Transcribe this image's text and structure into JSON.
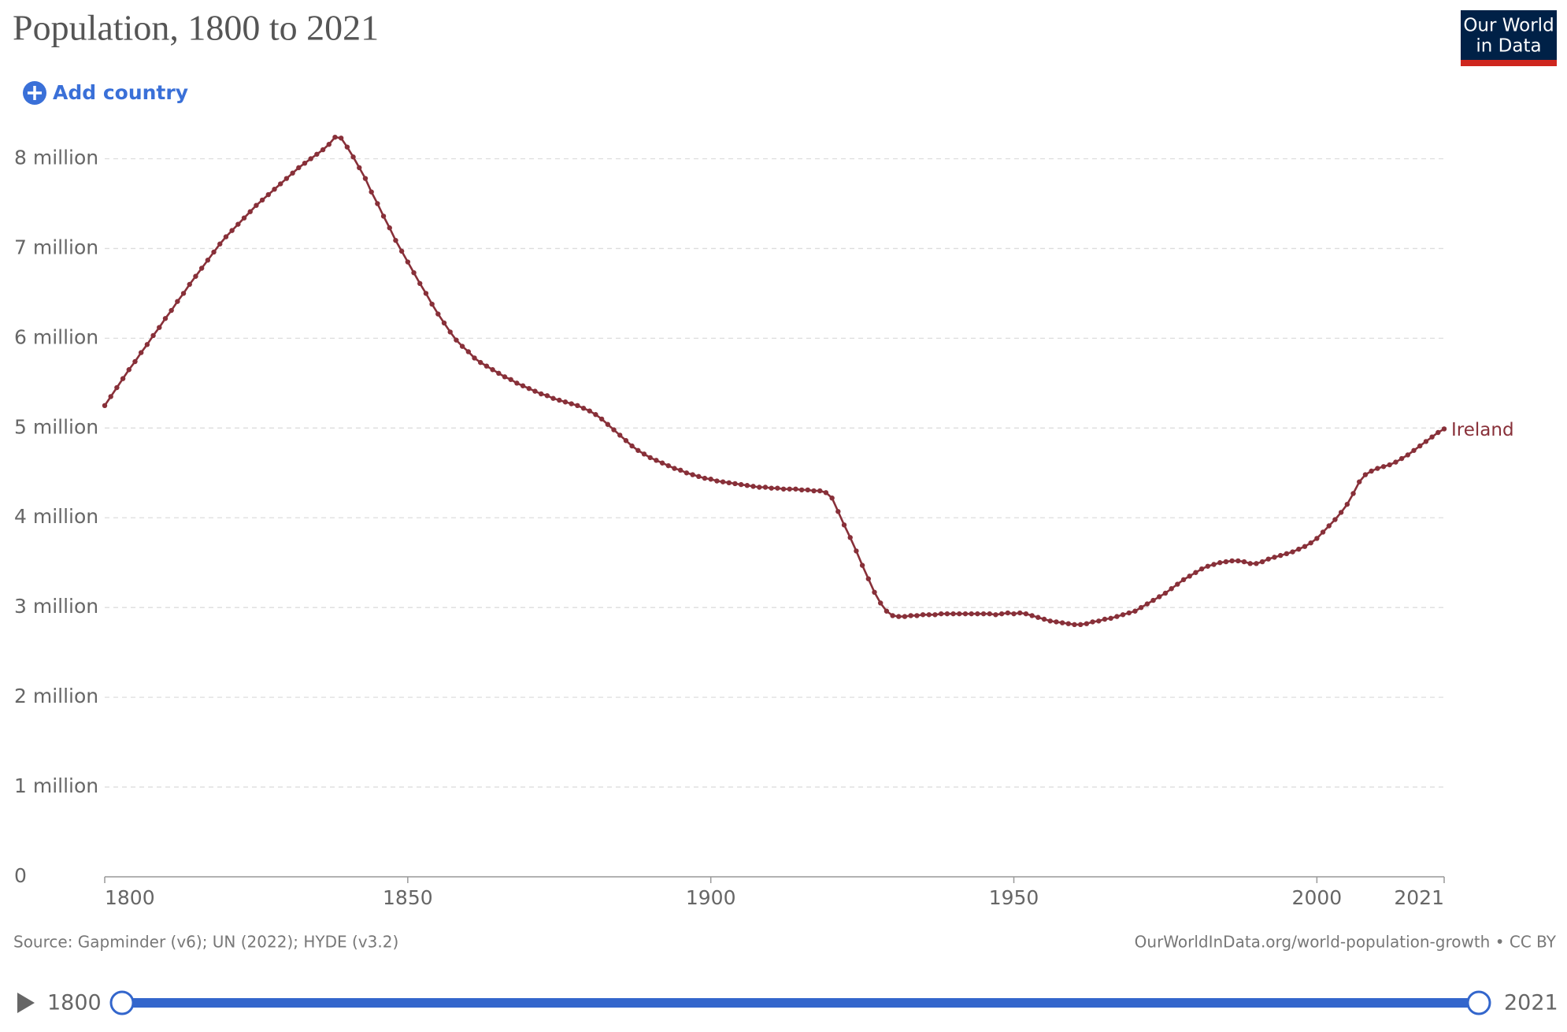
{
  "chart_data": {
    "type": "line",
    "title": "Population, 1800 to 2021",
    "source": "Source: Gapminder (v6); UN (2022); HYDE (v3.2)",
    "note": "OurWorldInData.org/world-population-growth • CC BY",
    "x": [
      1800,
      1801,
      1802,
      1803,
      1804,
      1805,
      1806,
      1807,
      1808,
      1809,
      1810,
      1811,
      1812,
      1813,
      1814,
      1815,
      1816,
      1817,
      1818,
      1819,
      1820,
      1821,
      1822,
      1823,
      1824,
      1825,
      1826,
      1827,
      1828,
      1829,
      1830,
      1831,
      1832,
      1833,
      1834,
      1835,
      1836,
      1837,
      1838,
      1839,
      1840,
      1841,
      1842,
      1843,
      1844,
      1845,
      1846,
      1847,
      1848,
      1849,
      1850,
      1851,
      1852,
      1853,
      1854,
      1855,
      1856,
      1857,
      1858,
      1859,
      1860,
      1861,
      1862,
      1863,
      1864,
      1865,
      1866,
      1867,
      1868,
      1869,
      1870,
      1871,
      1872,
      1873,
      1874,
      1875,
      1876,
      1877,
      1878,
      1879,
      1880,
      1881,
      1882,
      1883,
      1884,
      1885,
      1886,
      1887,
      1888,
      1889,
      1890,
      1891,
      1892,
      1893,
      1894,
      1895,
      1896,
      1897,
      1898,
      1899,
      1900,
      1901,
      1902,
      1903,
      1904,
      1905,
      1906,
      1907,
      1908,
      1909,
      1910,
      1911,
      1912,
      1913,
      1914,
      1915,
      1916,
      1917,
      1918,
      1919,
      1920,
      1921,
      1922,
      1923,
      1924,
      1925,
      1926,
      1927,
      1928,
      1929,
      1930,
      1931,
      1932,
      1933,
      1934,
      1935,
      1936,
      1937,
      1938,
      1939,
      1940,
      1941,
      1942,
      1943,
      1944,
      1945,
      1946,
      1947,
      1948,
      1949,
      1950,
      1951,
      1952,
      1953,
      1954,
      1955,
      1956,
      1957,
      1958,
      1959,
      1960,
      1961,
      1962,
      1963,
      1964,
      1965,
      1966,
      1967,
      1968,
      1969,
      1970,
      1971,
      1972,
      1973,
      1974,
      1975,
      1976,
      1977,
      1978,
      1979,
      1980,
      1981,
      1982,
      1983,
      1984,
      1985,
      1986,
      1987,
      1988,
      1989,
      1990,
      1991,
      1992,
      1993,
      1994,
      1995,
      1996,
      1997,
      1998,
      1999,
      2000,
      2001,
      2002,
      2003,
      2004,
      2005,
      2006,
      2007,
      2008,
      2009,
      2010,
      2011,
      2012,
      2013,
      2014,
      2015,
      2016,
      2017,
      2018,
      2019,
      2020,
      2021
    ],
    "series": [
      {
        "name": "Ireland",
        "color": "#883039",
        "values": [
          5250000,
          5350000,
          5450000,
          5550000,
          5650000,
          5740000,
          5840000,
          5930000,
          6030000,
          6120000,
          6220000,
          6310000,
          6410000,
          6500000,
          6600000,
          6690000,
          6780000,
          6870000,
          6960000,
          7050000,
          7130000,
          7200000,
          7270000,
          7340000,
          7410000,
          7480000,
          7540000,
          7600000,
          7660000,
          7720000,
          7780000,
          7840000,
          7900000,
          7950000,
          8000000,
          8050000,
          8100000,
          8160000,
          8240000,
          8230000,
          8130000,
          8020000,
          7900000,
          7780000,
          7630000,
          7500000,
          7360000,
          7230000,
          7090000,
          6970000,
          6850000,
          6730000,
          6610000,
          6500000,
          6380000,
          6270000,
          6170000,
          6070000,
          5980000,
          5910000,
          5850000,
          5780000,
          5730000,
          5690000,
          5650000,
          5610000,
          5570000,
          5540000,
          5500000,
          5470000,
          5440000,
          5410000,
          5380000,
          5360000,
          5330000,
          5310000,
          5290000,
          5270000,
          5250000,
          5220000,
          5190000,
          5150000,
          5100000,
          5040000,
          4980000,
          4920000,
          4860000,
          4800000,
          4750000,
          4710000,
          4670000,
          4640000,
          4610000,
          4580000,
          4550000,
          4530000,
          4500000,
          4480000,
          4460000,
          4440000,
          4430000,
          4410000,
          4400000,
          4390000,
          4380000,
          4370000,
          4360000,
          4350000,
          4340000,
          4340000,
          4330000,
          4330000,
          4320000,
          4320000,
          4320000,
          4310000,
          4310000,
          4300000,
          4300000,
          4280000,
          4220000,
          4070000,
          3920000,
          3780000,
          3630000,
          3470000,
          3320000,
          3170000,
          3050000,
          2960000,
          2910000,
          2900000,
          2900000,
          2910000,
          2910000,
          2920000,
          2920000,
          2920000,
          2930000,
          2930000,
          2930000,
          2930000,
          2930000,
          2930000,
          2930000,
          2930000,
          2930000,
          2920000,
          2930000,
          2940000,
          2930000,
          2940000,
          2930000,
          2910000,
          2890000,
          2870000,
          2850000,
          2840000,
          2830000,
          2820000,
          2810000,
          2810000,
          2820000,
          2840000,
          2850000,
          2870000,
          2880000,
          2900000,
          2920000,
          2940000,
          2960000,
          3000000,
          3040000,
          3080000,
          3120000,
          3160000,
          3210000,
          3260000,
          3310000,
          3350000,
          3390000,
          3430000,
          3460000,
          3480000,
          3500000,
          3510000,
          3520000,
          3520000,
          3510000,
          3490000,
          3490000,
          3510000,
          3540000,
          3560000,
          3580000,
          3600000,
          3620000,
          3650000,
          3680000,
          3720000,
          3770000,
          3840000,
          3910000,
          3980000,
          4060000,
          4150000,
          4270000,
          4400000,
          4480000,
          4520000,
          4550000,
          4570000,
          4590000,
          4620000,
          4660000,
          4700000,
          4750000,
          4800000,
          4850000,
          4900000,
          4950000,
          4990000
        ]
      }
    ],
    "xlim": [
      1800,
      2021
    ],
    "xticks": [
      1800,
      1850,
      1900,
      1950,
      2000,
      2021
    ],
    "ylim": [
      0,
      8250000
    ],
    "yticks": [
      0,
      {
        "value": 1000000,
        "label": "1 million"
      },
      {
        "value": 2000000,
        "label": "2 million"
      },
      {
        "value": 3000000,
        "label": "3 million"
      },
      {
        "value": 4000000,
        "label": "4 million"
      },
      {
        "value": 5000000,
        "label": "5 million"
      },
      {
        "value": 6000000,
        "label": "6 million"
      },
      {
        "value": 7000000,
        "label": "7 million"
      },
      {
        "value": 8000000,
        "label": "8 million"
      }
    ],
    "grid": true
  },
  "controls": {
    "add_button": "Add country",
    "timeline_start": 1800,
    "timeline_end": 2021
  },
  "logo": [
    "Our World",
    "in Data"
  ]
}
